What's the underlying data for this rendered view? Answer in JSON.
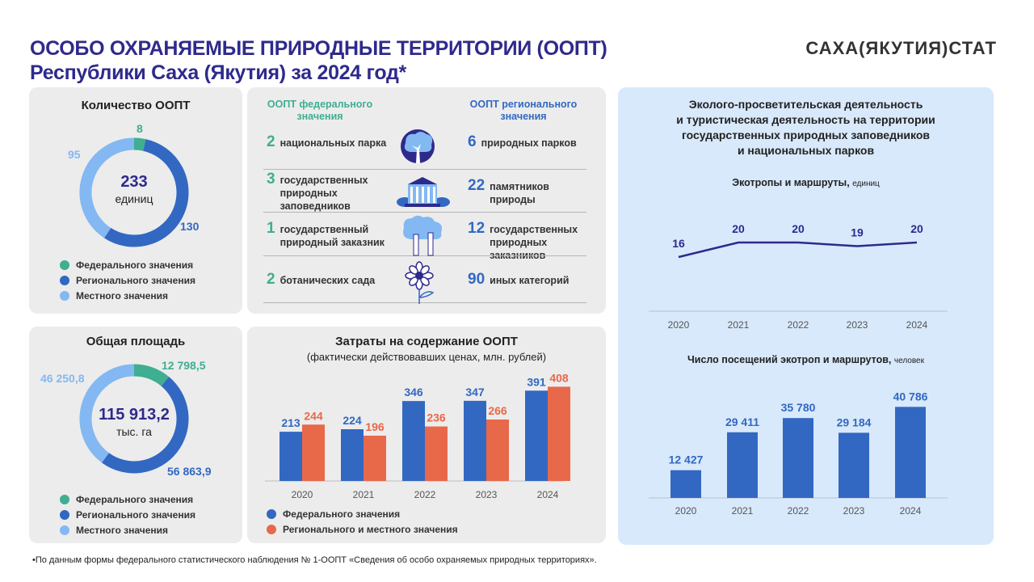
{
  "header": {
    "title_line1": "ОСОБО ОХРАНЯЕМЫЕ ПРИРОДНЫЕ ТЕРРИТОРИИ (ООПТ)",
    "title_line2": "Республики Саха (Якутия) за 2024 год*",
    "logo": "САХА(ЯКУТИЯ)СТАТ"
  },
  "colors": {
    "federal": "#3fae91",
    "regional": "#3268c2",
    "local": "#83b8f2",
    "regional_local": "#e8684a",
    "navy": "#2e2a8c",
    "panel_gray": "#ececec",
    "panel_blue": "#d8e9fb"
  },
  "count_panel": {
    "title": "Количество ООПТ",
    "total": "233",
    "unit": "единиц",
    "labels": {
      "federal": "8",
      "regional": "130",
      "local": "95"
    },
    "legend": [
      "Федерального значения",
      "Регионального значения",
      "Местного значения"
    ]
  },
  "area_panel": {
    "title": "Общая площадь",
    "total": "115 913,2",
    "unit": "тыс. га",
    "labels": {
      "federal": "12 798,5",
      "regional": "56 863,9",
      "local": "46 250,8"
    },
    "legend": [
      "Федерального значения",
      "Регионального значения",
      "Местного значения"
    ]
  },
  "categories_panel": {
    "federal_header": "ООПТ федерального значения",
    "regional_header": "ООПТ регионального значения",
    "icons": [
      "tree-icon",
      "building-icon",
      "forest-icon",
      "flower-icon"
    ],
    "rows": [
      {
        "fed_num": "2",
        "fed_text": "национальных парка",
        "reg_num": "6",
        "reg_text": "природных парков"
      },
      {
        "fed_num": "3",
        "fed_text": "государственных природных заповедников",
        "reg_num": "22",
        "reg_text": "памятников природы"
      },
      {
        "fed_num": "1",
        "fed_text": "государственный природный заказник",
        "reg_num": "12",
        "reg_text": "государственных природных заказников"
      },
      {
        "fed_num": "2",
        "fed_text": "ботанических сада",
        "reg_num": "90",
        "reg_text": "иных категорий"
      }
    ]
  },
  "costs_panel": {
    "title": "Затраты на содержание ООПТ",
    "subtitle": "(фактически действовавших ценах, млн. рублей)",
    "legend": [
      "Федерального значения",
      "Регионального и местного значения"
    ]
  },
  "eco_panel": {
    "title_lines": [
      "Эколого-просветительская деятельность",
      "и туристическая деятельность на территории",
      "государственных природных заповедников",
      "и национальных парков"
    ],
    "trails_title": "Экотропы и маршруты,",
    "trails_unit": "единиц",
    "visits_title": "Число посещений экотроп и маршрутов,",
    "visits_unit": "человек"
  },
  "footnote": "•По данным формы федерального статистического наблюдения № 1-ООПТ «Сведения об особо охраняемых природных территориях».",
  "chart_data": [
    {
      "type": "pie",
      "title": "Количество ООПТ",
      "categories": [
        "Федерального значения",
        "Регионального значения",
        "Местного значения"
      ],
      "values": [
        8,
        130,
        95
      ]
    },
    {
      "type": "pie",
      "title": "Общая площадь",
      "categories": [
        "Федерального значения",
        "Регионального значения",
        "Местного значения"
      ],
      "values": [
        12798.5,
        56863.9,
        46250.8
      ]
    },
    {
      "type": "bar",
      "title": "Затраты на содержание ООПТ",
      "categories": [
        "2020",
        "2021",
        "2022",
        "2023",
        "2024"
      ],
      "series": [
        {
          "name": "Федерального значения",
          "values": [
            213,
            224,
            346,
            347,
            391
          ]
        },
        {
          "name": "Регионального и местного значения",
          "values": [
            244,
            196,
            236,
            266,
            408
          ]
        }
      ],
      "ylim": [
        0,
        420
      ]
    },
    {
      "type": "line",
      "title": "Экотропы и маршруты",
      "x": [
        "2020",
        "2021",
        "2022",
        "2023",
        "2024"
      ],
      "values": [
        16,
        20,
        20,
        19,
        20
      ],
      "ylim": [
        0,
        22
      ]
    },
    {
      "type": "bar",
      "title": "Число посещений экотроп и маршрутов",
      "categories": [
        "2020",
        "2021",
        "2022",
        "2023",
        "2024"
      ],
      "values": [
        12427,
        29411,
        35780,
        29184,
        40786
      ],
      "value_labels": [
        "12 427",
        "29 411",
        "35 780",
        "29 184",
        "40 786"
      ],
      "ylim": [
        0,
        42000
      ]
    }
  ]
}
